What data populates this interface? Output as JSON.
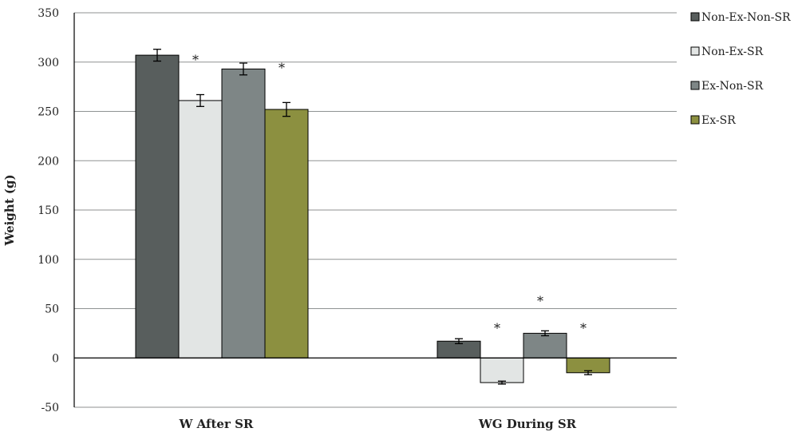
{
  "chart_data": {
    "type": "bar",
    "ylabel": "Weight (g)",
    "ylim": [
      -50,
      350
    ],
    "yticks": [
      -50,
      0,
      50,
      100,
      150,
      200,
      250,
      300,
      350
    ],
    "grid": true,
    "legend_position": "right",
    "categories": [
      "W After SR",
      "WG During SR"
    ],
    "series": [
      {
        "name": "Non-Ex-Non-SR",
        "color": "#585e5d",
        "values": [
          307,
          17
        ],
        "errors": [
          6,
          2.5
        ],
        "star": [
          false,
          false
        ]
      },
      {
        "name": "Non-Ex-SR",
        "color": "#e2e5e4",
        "values": [
          261,
          -25
        ],
        "errors": [
          6,
          1.5
        ],
        "star": [
          true,
          true
        ]
      },
      {
        "name": "Ex-Non-SR",
        "color": "#7e8686",
        "values": [
          293,
          25
        ],
        "errors": [
          6,
          2.5
        ],
        "star": [
          false,
          true
        ]
      },
      {
        "name": "Ex-SR",
        "color": "#8c9040",
        "values": [
          252,
          -15
        ],
        "errors": [
          7,
          2
        ],
        "star": [
          true,
          true
        ]
      }
    ],
    "annotation_symbol": "*"
  }
}
